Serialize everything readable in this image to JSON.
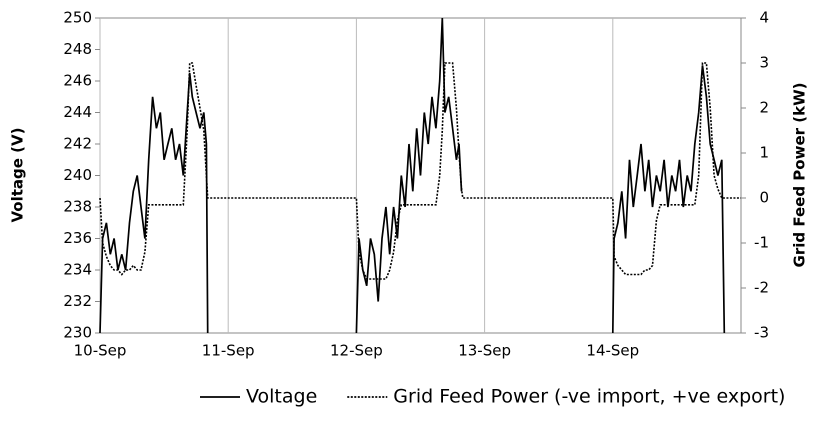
{
  "chart_data": {
    "type": "line",
    "y_label": "Voltage (V)",
    "y2_label": "Grid Feed Power (kW)",
    "x": [
      10.0,
      10.02,
      10.05,
      10.08,
      10.11,
      10.14,
      10.17,
      10.2,
      10.23,
      10.26,
      10.29,
      10.32,
      10.35,
      10.38,
      10.41,
      10.44,
      10.47,
      10.5,
      10.53,
      10.56,
      10.59,
      10.62,
      10.65,
      10.68,
      10.7,
      10.72,
      10.75,
      10.78,
      10.81,
      10.83,
      10.84,
      11.5,
      12.0,
      12.02,
      12.05,
      12.08,
      12.11,
      12.14,
      12.17,
      12.2,
      12.23,
      12.26,
      12.29,
      12.32,
      12.35,
      12.38,
      12.41,
      12.44,
      12.47,
      12.5,
      12.53,
      12.56,
      12.59,
      12.62,
      12.65,
      12.67,
      12.69,
      12.72,
      12.75,
      12.78,
      12.8,
      12.82,
      12.83,
      13.5,
      14.0,
      14.01,
      14.04,
      14.07,
      14.1,
      14.13,
      14.16,
      14.19,
      14.22,
      14.25,
      14.28,
      14.31,
      14.34,
      14.37,
      14.4,
      14.43,
      14.46,
      14.49,
      14.52,
      14.55,
      14.58,
      14.61,
      14.64,
      14.67,
      14.7,
      14.73,
      14.76,
      14.79,
      14.82,
      14.85,
      14.87,
      15.0
    ],
    "series": [
      {
        "name": "Voltage",
        "color": "#000000",
        "line_style": "solid",
        "axis": "y",
        "values": [
          230,
          236,
          237,
          235,
          236,
          234,
          235,
          234,
          237,
          239,
          240,
          238,
          236,
          241,
          245,
          243,
          244,
          241,
          242,
          243,
          241,
          242,
          240,
          244,
          246.5,
          245,
          244,
          243,
          244,
          242,
          230,
          null,
          230,
          236,
          234,
          233,
          236,
          235,
          232,
          236,
          238,
          235,
          238,
          236,
          240,
          238,
          242,
          239,
          243,
          240,
          244,
          242,
          245,
          243,
          246,
          250,
          244,
          245,
          243,
          241,
          242,
          239,
          null,
          null,
          230,
          236,
          237,
          239,
          236,
          241,
          238,
          240,
          242,
          239,
          241,
          238,
          240,
          239,
          241,
          238,
          240,
          239,
          241,
          238,
          240,
          239,
          242,
          244,
          247,
          245,
          242,
          241,
          240,
          241,
          230,
          null
        ]
      },
      {
        "name": "Grid Feed Power (-ve import, +ve export)",
        "color": "#000000",
        "line_style": "dotted",
        "axis": "y2",
        "values": [
          0,
          -1.0,
          -1.3,
          -1.5,
          -1.6,
          -1.6,
          -1.7,
          -1.6,
          -1.6,
          -1.5,
          -1.6,
          -1.6,
          -1.2,
          -0.15,
          -0.15,
          -0.15,
          -0.15,
          -0.15,
          -0.15,
          -0.15,
          -0.15,
          -0.15,
          -0.15,
          1.5,
          3,
          3,
          2.5,
          2,
          1.5,
          0.5,
          0,
          0,
          0,
          -1.2,
          -1.6,
          -1.8,
          -1.8,
          -1.8,
          -1.8,
          -1.8,
          -1.8,
          -1.6,
          -1.2,
          -0.5,
          -0.15,
          -0.15,
          -0.15,
          -0.15,
          -0.15,
          -0.15,
          -0.15,
          -0.15,
          -0.15,
          -0.15,
          0.5,
          1.5,
          3,
          3,
          3,
          2,
          1,
          0.2,
          0,
          0,
          0,
          -1.3,
          -1.5,
          -1.6,
          -1.7,
          -1.7,
          -1.7,
          -1.7,
          -1.7,
          -1.6,
          -1.6,
          -1.5,
          -0.5,
          -0.15,
          -0.15,
          -0.15,
          -0.15,
          -0.15,
          -0.15,
          -0.15,
          -0.15,
          -0.15,
          -0.15,
          0.5,
          3,
          3,
          2,
          0.5,
          0.2,
          0,
          0,
          0
        ]
      }
    ],
    "xlim": [
      10,
      15
    ],
    "xticks": [
      {
        "value": 10,
        "label": "10-Sep"
      },
      {
        "value": 11,
        "label": "11-Sep"
      },
      {
        "value": 12,
        "label": "12-Sep"
      },
      {
        "value": 13,
        "label": "13-Sep"
      },
      {
        "value": 14,
        "label": "14-Sep"
      }
    ],
    "ylim": [
      230,
      250
    ],
    "yticks": [
      230,
      232,
      234,
      236,
      238,
      240,
      242,
      244,
      246,
      248,
      250
    ],
    "y2lim": [
      -3,
      4
    ],
    "y2ticks": [
      -3,
      -2,
      -1,
      0,
      1,
      2,
      3,
      4
    ],
    "x_grid": true,
    "y_grid": false,
    "legend": "bottom"
  }
}
